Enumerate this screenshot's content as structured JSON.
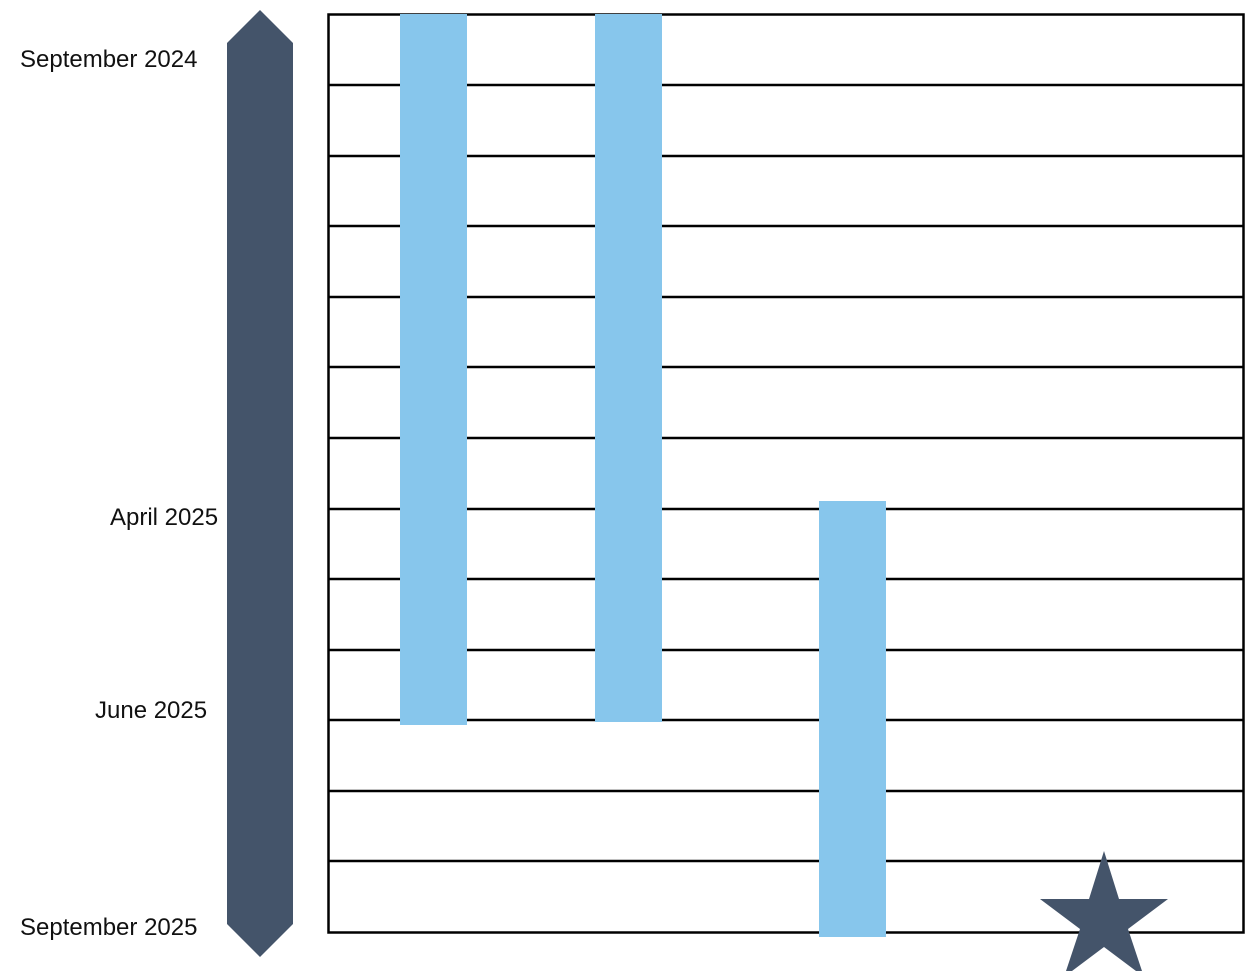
{
  "timeline": {
    "labels": [
      "September 2024",
      "April 2025",
      "June 2025",
      "September 2025"
    ]
  },
  "colors": {
    "arrow": "#44546a",
    "bar": "#87c6ec",
    "grid_line": "#000000",
    "star": "#44546a"
  }
}
